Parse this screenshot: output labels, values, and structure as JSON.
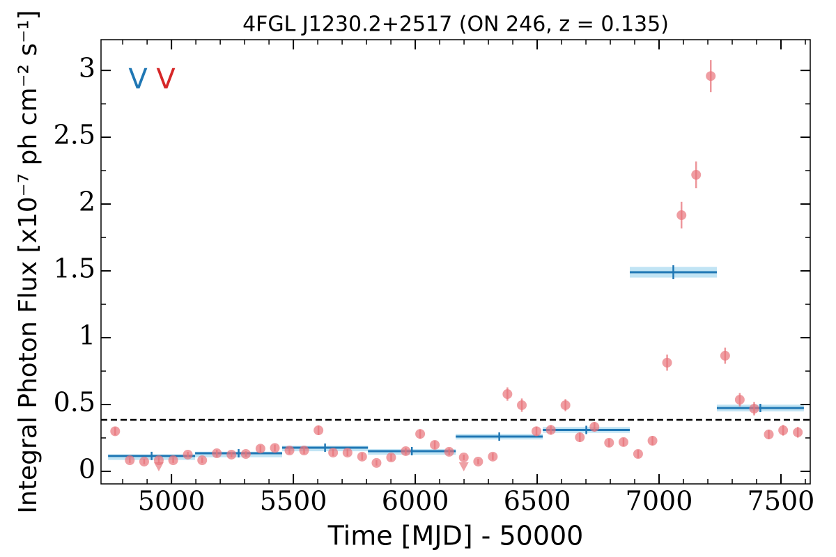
{
  "chart_data": {
    "type": "scatter",
    "title": "4FGL J1230.2+2517 (ON 246, z = 0.135)",
    "xlabel": "Time [MJD] - 50000",
    "ylabel": "Integral Photon Flux [x10⁻⁷ ph cm⁻² s⁻¹]",
    "xlim": [
      4711,
      7620
    ],
    "ylim": [
      -0.094,
      3.23
    ],
    "xticks": [
      5000,
      5500,
      6000,
      6500,
      7000,
      7500
    ],
    "yticks": [
      0,
      0.5,
      1,
      1.5,
      2,
      2.5,
      3
    ],
    "x_minor_ticks": [
      4800,
      4900,
      5100,
      5200,
      5300,
      5400,
      5600,
      5700,
      5800,
      5900,
      6100,
      6200,
      6300,
      6400,
      6600,
      6700,
      6800,
      6900,
      7100,
      7200,
      7300,
      7400,
      7600
    ],
    "y_minor_ticks": [
      0.25,
      0.75,
      1.25,
      1.75,
      2.25,
      2.75
    ],
    "points": {
      "color": "#e8737a",
      "x": [
        4769,
        4829,
        4888,
        4948,
        5007,
        5067,
        5126,
        5186,
        5246,
        5305,
        5365,
        5424,
        5484,
        5544,
        5603,
        5663,
        5722,
        5782,
        5841,
        5901,
        5961,
        6020,
        6080,
        6139,
        6199,
        6258,
        6318,
        6378,
        6437,
        6497,
        6556,
        6616,
        6675,
        6735,
        6795,
        6854,
        6914,
        6973,
        7033,
        7092,
        7152,
        7212,
        7271,
        7331,
        7390,
        7450,
        7509,
        7569
      ],
      "values": [
        0.3,
        0.083,
        0.073,
        0.083,
        0.083,
        0.125,
        0.083,
        0.135,
        0.125,
        0.13,
        0.17,
        0.175,
        0.156,
        0.156,
        0.307,
        0.14,
        0.14,
        0.11,
        0.063,
        0.104,
        0.151,
        0.28,
        0.198,
        0.146,
        0.104,
        0.073,
        0.11,
        0.578,
        0.495,
        0.3,
        0.31,
        0.495,
        0.255,
        0.333,
        0.214,
        0.219,
        0.13,
        0.229,
        0.813,
        1.917,
        2.219,
        2.958,
        0.865,
        0.536,
        0.469,
        0.276,
        0.307,
        0.292
      ],
      "yerr": [
        0.03,
        0.02,
        0.02,
        0.02,
        0.02,
        0.02,
        0.02,
        0.025,
        0.02,
        0.02,
        0.025,
        0.025,
        0.025,
        0.025,
        0.035,
        0.025,
        0.025,
        0.025,
        0.02,
        0.025,
        0.025,
        0.035,
        0.03,
        0.025,
        0.02,
        0.02,
        0.025,
        0.05,
        0.05,
        0.035,
        0.035,
        0.045,
        0.035,
        0.035,
        0.03,
        0.03,
        0.03,
        0.035,
        0.06,
        0.1,
        0.1,
        0.12,
        0.06,
        0.05,
        0.05,
        0.035,
        0.04,
        0.04
      ]
    },
    "upper_limits": {
      "color": "#eea0a4",
      "x": [
        4948,
        6199
      ],
      "values": [
        0.036,
        0.036
      ]
    },
    "blocks": {
      "color": "#1f77b4",
      "band_color": "#a6d8f0",
      "bins": [
        4740,
        5097,
        5454,
        5806,
        6166,
        6523,
        6880,
        7237,
        7594
      ],
      "values": [
        0.115,
        0.135,
        0.177,
        0.151,
        0.26,
        0.31,
        1.49,
        0.474
      ],
      "yerr": [
        0.012,
        0.012,
        0.015,
        0.015,
        0.02,
        0.022,
        0.04,
        0.025
      ]
    },
    "reference_line": {
      "value": 0.385,
      "color": "#000000"
    },
    "annotations": [
      {
        "text": "V",
        "color": "#1f77b4"
      },
      {
        "text": "V",
        "color": "#d62728"
      }
    ]
  }
}
